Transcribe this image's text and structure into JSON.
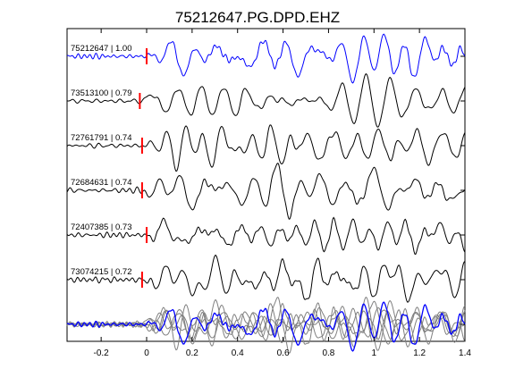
{
  "chart_data": {
    "type": "line",
    "title": "75212647.PG.DPD.EHZ",
    "xlabel": "",
    "ylabel": "",
    "xlim": [
      -0.35,
      1.4
    ],
    "xticks": [
      -0.2,
      0,
      0.2,
      0.4,
      0.6,
      0.8,
      1,
      1.2,
      1.4
    ],
    "xtick_labels": [
      "-0.2",
      "0",
      "0.2",
      "0.4",
      "0.6",
      "0.8",
      "1",
      "1.2",
      "1.4"
    ],
    "grid": false,
    "pick_marker_color": "#ff0000",
    "master_color": "#0000ff",
    "trace_color": "#000000",
    "overlay_color": "#808080",
    "traces": [
      {
        "label": "75212647 | 1.00",
        "pick_time": 0.0,
        "master": true,
        "seed": 1
      },
      {
        "label": "73513100 | 0.79",
        "pick_time": -0.03,
        "master": false,
        "seed": 2
      },
      {
        "label": "72761791 | 0.74",
        "pick_time": -0.02,
        "master": false,
        "seed": 3
      },
      {
        "label": "72684631 | 0.74",
        "pick_time": -0.02,
        "master": false,
        "seed": 4
      },
      {
        "label": "72407385 | 0.73",
        "pick_time": 0.0,
        "master": false,
        "seed": 5
      },
      {
        "label": "73074215 | 0.72",
        "pick_time": -0.02,
        "master": false,
        "seed": 6
      }
    ],
    "stack": {
      "master": "75212647 | 1.00",
      "overlay_count": 5
    }
  }
}
